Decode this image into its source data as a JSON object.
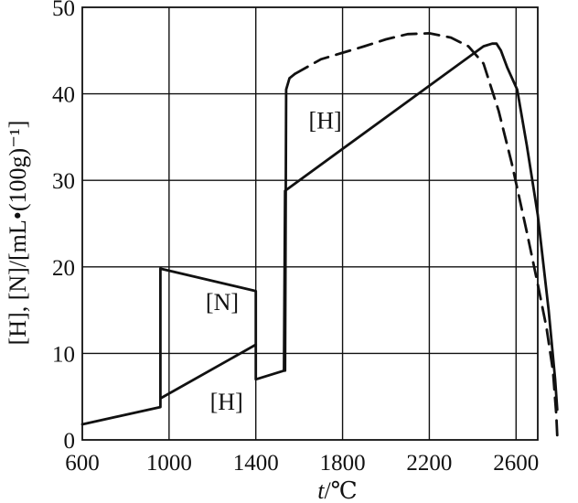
{
  "chart_data": {
    "type": "line",
    "xlabel_italic": "t",
    "xlabel_unit": "/℃",
    "ylabel": "[H], [N]/[mL•(100g)⁻¹]",
    "xlim": [
      600,
      2700
    ],
    "ylim": [
      0,
      50
    ],
    "xticks": [
      600,
      1000,
      1400,
      1800,
      2200,
      2600
    ],
    "yticks": [
      0,
      10,
      20,
      30,
      40,
      50
    ],
    "grid": true,
    "series": [
      {
        "id": "h_solid",
        "style": "solid",
        "points": [
          [
            600,
            1.8
          ],
          [
            960,
            3.8
          ],
          [
            960,
            4.8
          ],
          [
            1400,
            11.0
          ],
          [
            1400,
            7.0
          ],
          [
            1530,
            8.0
          ],
          [
            1535,
            28.8
          ],
          [
            2450,
            45.5
          ],
          [
            2490,
            45.8
          ],
          [
            2510,
            45.8
          ],
          [
            2530,
            45.0
          ],
          [
            2560,
            43.0
          ],
          [
            2605,
            40.5
          ],
          [
            2650,
            34.0
          ],
          [
            2700,
            26.0
          ],
          [
            2750,
            15.0
          ],
          [
            2780,
            7.0
          ],
          [
            2790,
            3.5
          ]
        ]
      },
      {
        "id": "h_jump",
        "style": "solid",
        "points": [
          [
            1535,
            8.0
          ],
          [
            1540,
            40.5
          ],
          [
            1555,
            41.8
          ],
          [
            1580,
            42.3
          ]
        ]
      },
      {
        "id": "n_solid",
        "style": "solid",
        "points": [
          [
            960,
            4.8
          ],
          [
            960,
            19.8
          ],
          [
            1400,
            17.2
          ],
          [
            1400,
            11.0
          ]
        ]
      },
      {
        "id": "h_dashed",
        "style": "dashed",
        "points": [
          [
            1580,
            42.3
          ],
          [
            1700,
            44.0
          ],
          [
            1900,
            45.5
          ],
          [
            2000,
            46.3
          ],
          [
            2100,
            46.9
          ],
          [
            2200,
            47.0
          ],
          [
            2300,
            46.5
          ],
          [
            2380,
            45.5
          ],
          [
            2450,
            43.5
          ],
          [
            2520,
            38.0
          ],
          [
            2580,
            32.0
          ],
          [
            2650,
            24.0
          ],
          [
            2700,
            18.0
          ],
          [
            2740,
            13.0
          ],
          [
            2770,
            8.0
          ],
          [
            2785,
            3.0
          ],
          [
            2790,
            0.5
          ]
        ]
      }
    ],
    "annotations": [
      {
        "text": "[H]",
        "x": 1720,
        "y": 36
      },
      {
        "text": "[N]",
        "x": 1245,
        "y": 15
      },
      {
        "text": "[H]",
        "x": 1265,
        "y": 3.5
      }
    ]
  }
}
